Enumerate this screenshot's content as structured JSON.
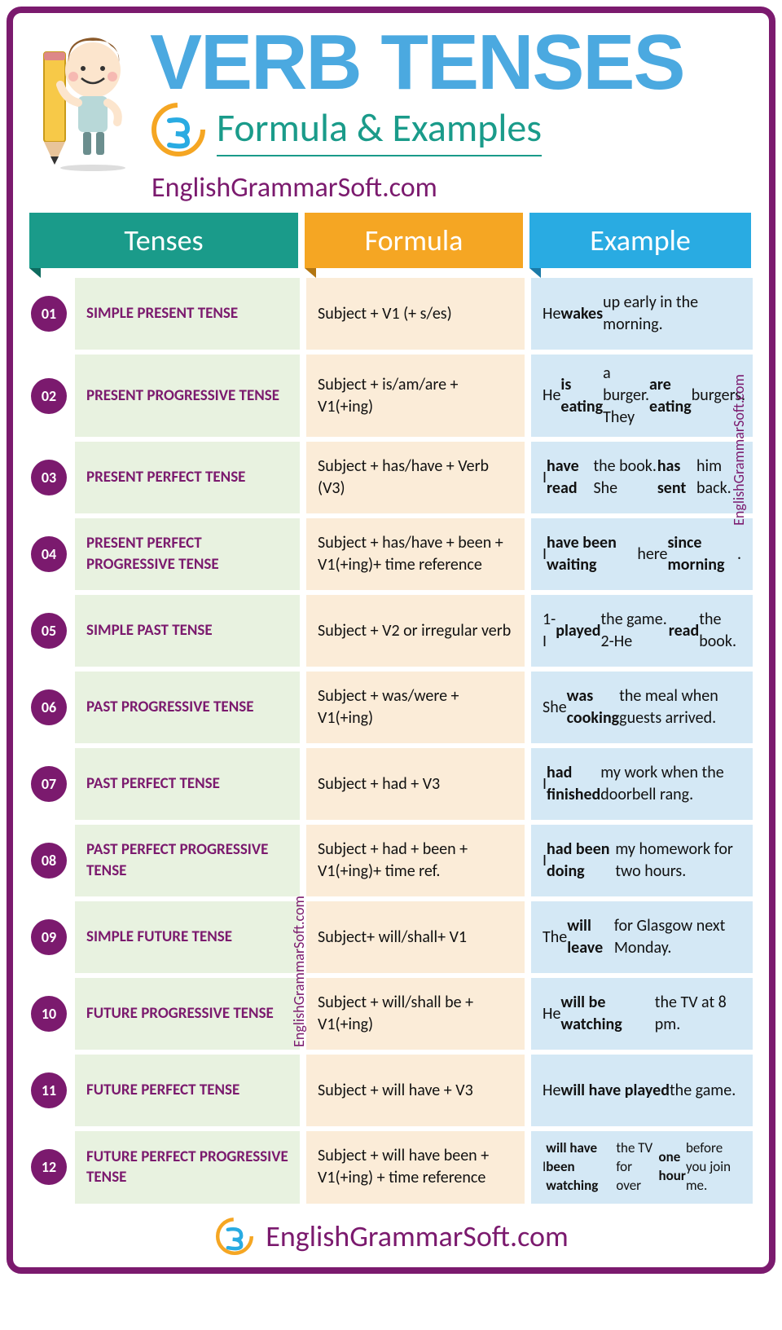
{
  "colors": {
    "frame": "#7b1a6e",
    "teal": "#1a9b8a",
    "orange": "#f5a623",
    "blue": "#29abe2",
    "title": "#4ba9e0",
    "badge": "#7b1a6e",
    "tense_bg": "#e8f2e0",
    "formula_bg": "#fbecd8",
    "example_bg": "#d4e8f5"
  },
  "header": {
    "title": "VERB TENSES",
    "subtitle": "Formula & Examples",
    "website": "EnglishGrammarSoft.com",
    "logo_label": "EnglishGrammarSoft"
  },
  "columns": {
    "tenses": "Tenses",
    "formula": "Formula",
    "example": "Example"
  },
  "watermark": "EnglishGrammarSoft.com",
  "rows": [
    {
      "num": "01",
      "tense": "SIMPLE PRESENT TENSE",
      "formula": "Subject + V1 (+ s/es)",
      "example": "He <b>wakes</b> up early in the morning."
    },
    {
      "num": "02",
      "tense": "PRESENT PROGRESSIVE TENSE",
      "formula": "Subject + is/am/are + V1(+ing)",
      "example": "He <b>is eating</b> a burger. They <b>are eating</b> burgers."
    },
    {
      "num": "03",
      "tense": "PRESENT PERFECT TENSE",
      "formula": "Subject + has/have + Verb (V3)",
      "example": "I <b>have read</b> the book. She <b>has sent</b> him back."
    },
    {
      "num": "04",
      "tense": "PRESENT PERFECT PROGRESSIVE TENSE",
      "formula": "Subject + has/have + been + V1(+ing)+ time reference",
      "example": "I <b>have been waiting</b> here <b>since morning</b>."
    },
    {
      "num": "05",
      "tense": "SIMPLE PAST TENSE",
      "formula": "Subject + V2 or irregular verb",
      "example": "1-I <b>played</b> the game. 2-He <b>read</b> the book."
    },
    {
      "num": "06",
      "tense": "PAST PROGRESSIVE TENSE",
      "formula": "Subject + was/were + V1(+ing)",
      "example": "She <b>was cooking</b> the meal when guests arrived."
    },
    {
      "num": "07",
      "tense": "PAST PERFECT TENSE",
      "formula": "Subject + had + V3",
      "example": "I <b>had finished</b> my work when the doorbell rang."
    },
    {
      "num": "08",
      "tense": "PAST PERFECT PROGRESSIVE TENSE",
      "formula": "Subject + had + been + V1(+ing)+ time ref.",
      "example": "I <b>had been doing</b> my homework for two hours."
    },
    {
      "num": "09",
      "tense": "SIMPLE FUTURE TENSE",
      "formula": "Subject+ will/shall+ V1",
      "example": "The <b>will leave</b> for Glasgow next Monday."
    },
    {
      "num": "10",
      "tense": "FUTURE PROGRESSIVE TENSE",
      "formula": "Subject + will/shall be + V1(+ing)",
      "example": "He <b>will be watching</b> the TV at 8 pm."
    },
    {
      "num": "11",
      "tense": "FUTURE PERFECT TENSE",
      "formula": "Subject + will have + V3",
      "example": "He <b>will have played</b> the game."
    },
    {
      "num": "12",
      "tense": "FUTURE PERFECT PROGRESSIVE TENSE",
      "formula": "Subject + will have been + V1(+ing) + time reference",
      "example": "I <b>will have been watching</b> the TV for over <b>one hour</b> before you join me.",
      "tiny": true
    }
  ],
  "footer": {
    "text": "EnglishGrammarSoft.com"
  }
}
